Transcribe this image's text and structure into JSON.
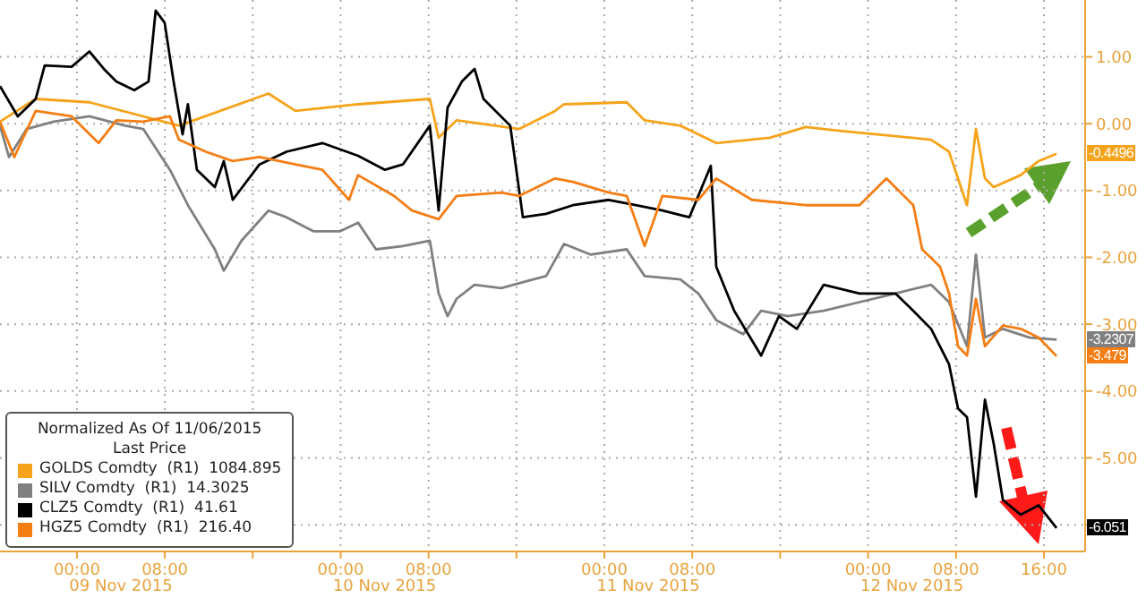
{
  "chart_data": {
    "type": "line",
    "legend_title": "Normalized As Of 11/06/2015\nLast Price",
    "legend": "bottom left",
    "grid": true,
    "line_style": "solid",
    "xlim": [
      "2015-11-08T17:00",
      "2015-11-12T19:45"
    ],
    "ylim": [
      -6.4,
      1.85
    ],
    "yticks": [
      {
        "value": 1,
        "label": "1.00"
      },
      {
        "value": 0,
        "label": "0.00"
      },
      {
        "value": -1,
        "label": "-1.00"
      },
      {
        "value": -2,
        "label": "-2.00"
      },
      {
        "value": -3,
        "label": "-3.00"
      },
      {
        "value": -4,
        "label": "-4.00"
      },
      {
        "value": -5,
        "label": "-5.00"
      },
      {
        "value": -6,
        "label": null
      }
    ],
    "xticks": [
      {
        "value": "2015-11-09T00:00",
        "label": "00:00"
      },
      {
        "value": "2015-11-09T08:00",
        "label": "08:00"
      },
      {
        "value": "2015-11-09T16:00",
        "label": null
      },
      {
        "value": "2015-11-10T00:00",
        "label": "00:00"
      },
      {
        "value": "2015-11-10T08:00",
        "label": "08:00"
      },
      {
        "value": "2015-11-10T16:00",
        "label": null
      },
      {
        "value": "2015-11-11T00:00",
        "label": "00:00"
      },
      {
        "value": "2015-11-11T08:00",
        "label": "08:00"
      },
      {
        "value": "2015-11-11T16:00",
        "label": null
      },
      {
        "value": "2015-11-12T00:00",
        "label": "00:00"
      },
      {
        "value": "2015-11-12T08:00",
        "label": "08:00"
      },
      {
        "value": "2015-11-12T16:00",
        "label": "16:00"
      }
    ],
    "x2lim": [
      "2015-11-08T17:00",
      "2015-11-12T19:45"
    ],
    "x2ticks": [
      {
        "value": "2015-11-09T04:00",
        "label": "09 Nov 2015"
      },
      {
        "value": "2015-11-10T04:00",
        "label": "10 Nov 2015"
      },
      {
        "value": "2015-11-11T04:00",
        "label": "11 Nov 2015"
      },
      {
        "value": "2015-11-12T04:00",
        "label": "12 Nov 2015"
      }
    ],
    "series": [
      {
        "name": "GOLDS Comdty  (R1)  1084.895",
        "color": "#f5a31a",
        "x": [
          "2015-11-08T17:00",
          "2015-11-08T20:15",
          "2015-11-09T01:08",
          "2015-11-09T09:17",
          "2015-11-09T17:26",
          "2015-11-09T19:53",
          "2015-11-10T01:35",
          "2015-11-10T08:07",
          "2015-11-10T08:55",
          "2015-11-10T10:33",
          "2015-11-10T16:15",
          "2015-11-10T19:31",
          "2015-11-10T20:20",
          "2015-11-11T02:02",
          "2015-11-11T03:40",
          "2015-11-11T06:55",
          "2015-11-11T10:11",
          "2015-11-11T15:04",
          "2015-11-11T18:20",
          "2015-11-11T21:35",
          "2015-11-12T00:51",
          "2015-11-12T05:44",
          "2015-11-12T07:22",
          "2015-11-12T09:00",
          "2015-11-12T09:49",
          "2015-11-12T10:38",
          "2015-11-12T11:26",
          "2015-11-12T13:53",
          "2015-11-12T15:31",
          "2015-11-12T17:09"
        ],
        "values": [
          0.03,
          0.37,
          0.32,
          -0.03,
          0.45,
          0.19,
          0.29,
          0.37,
          -0.21,
          0.05,
          -0.08,
          0.19,
          0.29,
          0.32,
          0.05,
          -0.03,
          -0.29,
          -0.21,
          -0.05,
          -0.11,
          -0.16,
          -0.24,
          -0.42,
          -1.22,
          -0.08,
          -0.82,
          -0.95,
          -0.77,
          -0.56,
          -0.4496
        ]
      },
      {
        "name": "SILV Comdty  (R1)  14.3025",
        "color": "#808080",
        "x": [
          "2015-11-08T17:00",
          "2015-11-08T17:49",
          "2015-11-08T19:26",
          "2015-11-08T21:53",
          "2015-11-09T01:08",
          "2015-11-09T04:24",
          "2015-11-09T06:02",
          "2015-11-09T08:28",
          "2015-11-09T10:06",
          "2015-11-09T12:33",
          "2015-11-09T13:22",
          "2015-11-09T14:59",
          "2015-11-09T17:26",
          "2015-11-09T19:04",
          "2015-11-09T21:31",
          "2015-11-09T23:58",
          "2015-11-10T01:35",
          "2015-11-10T03:13",
          "2015-11-10T05:40",
          "2015-11-10T08:07",
          "2015-11-10T08:55",
          "2015-11-10T09:44",
          "2015-11-10T10:33",
          "2015-11-10T12:11",
          "2015-11-10T14:37",
          "2015-11-10T17:04",
          "2015-11-10T18:42",
          "2015-11-10T20:20",
          "2015-11-10T22:46",
          "2015-11-11T02:02",
          "2015-11-11T03:40",
          "2015-11-11T06:55",
          "2015-11-11T08:33",
          "2015-11-11T10:11",
          "2015-11-11T12:38",
          "2015-11-11T14:16",
          "2015-11-11T16:42",
          "2015-11-11T19:58",
          "2015-11-11T23:13",
          "2015-11-12T02:29",
          "2015-11-12T05:44",
          "2015-11-12T07:22",
          "2015-11-12T09:00",
          "2015-11-12T09:49",
          "2015-11-12T10:38",
          "2015-11-12T12:16",
          "2015-11-12T14:42",
          "2015-11-12T17:09"
        ],
        "values": [
          -0.03,
          -0.5,
          -0.08,
          0.03,
          0.11,
          -0.03,
          -0.08,
          -0.69,
          -1.22,
          -1.88,
          -2.2,
          -1.75,
          -1.3,
          -1.4,
          -1.61,
          -1.61,
          -1.48,
          -1.88,
          -1.83,
          -1.75,
          -2.54,
          -2.88,
          -2.62,
          -2.41,
          -2.46,
          -2.35,
          -2.28,
          -1.8,
          -1.96,
          -1.88,
          -2.28,
          -2.33,
          -2.54,
          -2.94,
          -3.15,
          -2.8,
          -2.88,
          -2.8,
          -2.67,
          -2.54,
          -2.41,
          -2.67,
          -3.33,
          -1.96,
          -3.2,
          -3.07,
          -3.2,
          -3.2307
        ]
      },
      {
        "name": "CLZ5 Comdty  (R1)  41.61",
        "color": "#000000",
        "x": [
          "2015-11-08T17:00",
          "2015-11-08T18:37",
          "2015-11-08T20:15",
          "2015-11-08T21:04",
          "2015-11-08T23:31",
          "2015-11-09T01:08",
          "2015-11-09T02:27",
          "2015-11-09T03:35",
          "2015-11-09T05:13",
          "2015-11-09T06:31",
          "2015-11-09T07:10",
          "2015-11-09T07:59",
          "2015-11-09T08:48",
          "2015-11-09T09:37",
          "2015-11-09T10:06",
          "2015-11-09T10:55",
          "2015-11-09T12:33",
          "2015-11-09T13:22",
          "2015-11-09T14:11",
          "2015-11-09T16:37",
          "2015-11-09T19:04",
          "2015-11-09T22:20",
          "2015-11-10T01:35",
          "2015-11-10T04:02",
          "2015-11-10T05:40",
          "2015-11-10T08:07",
          "2015-11-10T08:55",
          "2015-11-10T09:44",
          "2015-11-10T11:02",
          "2015-11-10T12:11",
          "2015-11-10T13:00",
          "2015-11-10T15:26",
          "2015-11-10T16:35",
          "2015-11-10T18:42",
          "2015-11-10T21:08",
          "2015-11-11T00:24",
          "2015-11-11T02:51",
          "2015-11-11T05:17",
          "2015-11-11T07:44",
          "2015-11-11T09:41",
          "2015-11-11T10:11",
          "2015-11-11T11:49",
          "2015-11-11T14:16",
          "2015-11-11T15:53",
          "2015-11-11T17:31",
          "2015-11-11T19:58",
          "2015-11-11T23:13",
          "2015-11-12T02:29",
          "2015-11-12T04:07",
          "2015-11-12T05:44",
          "2015-11-12T07:22",
          "2015-11-12T08:11",
          "2015-11-12T09:00",
          "2015-11-12T09:49",
          "2015-11-12T10:38",
          "2015-11-12T11:26",
          "2015-11-12T12:16",
          "2015-11-12T13:53",
          "2015-11-12T15:31",
          "2015-11-12T17:09"
        ],
        "values": [
          0.56,
          0.11,
          0.37,
          0.87,
          0.85,
          1.08,
          0.82,
          0.63,
          0.5,
          0.63,
          1.69,
          1.51,
          0.63,
          -0.16,
          0.29,
          -0.69,
          -0.95,
          -0.56,
          -1.14,
          -0.61,
          -0.42,
          -0.29,
          -0.48,
          -0.69,
          -0.61,
          -0.03,
          -1.3,
          0.24,
          0.63,
          0.82,
          0.37,
          -0.03,
          -1.4,
          -1.35,
          -1.22,
          -1.14,
          -1.22,
          -1.3,
          -1.4,
          -0.63,
          -2.14,
          -2.8,
          -3.47,
          -2.88,
          -3.07,
          -2.41,
          -2.54,
          -2.54,
          -2.8,
          -3.07,
          -3.6,
          -4.26,
          -4.39,
          -5.58,
          -4.13,
          -4.79,
          -5.63,
          -5.85,
          -5.71,
          -6.051
        ]
      },
      {
        "name": "HGZ5 Comdty  (R1)  216.40",
        "color": "#f57e14",
        "x": [
          "2015-11-08T17:00",
          "2015-11-08T18:18",
          "2015-11-08T20:15",
          "2015-11-08T23:31",
          "2015-11-09T01:58",
          "2015-11-09T03:35",
          "2015-11-09T06:02",
          "2015-11-09T08:28",
          "2015-11-09T09:17",
          "2015-11-09T11:44",
          "2015-11-09T14:11",
          "2015-11-09T16:37",
          "2015-11-09T19:53",
          "2015-11-09T22:20",
          "2015-11-10T00:46",
          "2015-11-10T01:35",
          "2015-11-10T04:51",
          "2015-11-10T06:29",
          "2015-11-10T08:55",
          "2015-11-10T10:33",
          "2015-11-10T14:37",
          "2015-11-10T16:15",
          "2015-11-10T19:31",
          "2015-11-10T21:08",
          "2015-11-11T00:24",
          "2015-11-11T02:02",
          "2015-11-11T03:40",
          "2015-11-11T05:17",
          "2015-11-11T08:33",
          "2015-11-11T10:11",
          "2015-11-11T13:26",
          "2015-11-11T18:20",
          "2015-11-11T23:13",
          "2015-11-12T01:40",
          "2015-11-12T04:07",
          "2015-11-12T04:55",
          "2015-11-12T06:33",
          "2015-11-12T07:22",
          "2015-11-12T08:11",
          "2015-11-12T09:00",
          "2015-11-12T09:49",
          "2015-11-12T10:38",
          "2015-11-12T12:16",
          "2015-11-12T13:53",
          "2015-11-12T15:31",
          "2015-11-12T17:09"
        ],
        "values": [
          0.03,
          -0.5,
          0.19,
          0.11,
          -0.29,
          0.05,
          0.03,
          0.11,
          -0.24,
          -0.42,
          -0.56,
          -0.5,
          -0.61,
          -0.69,
          -1.14,
          -0.77,
          -1.08,
          -1.3,
          -1.43,
          -1.08,
          -1.03,
          -1.08,
          -0.82,
          -0.87,
          -1.03,
          -1.08,
          -1.83,
          -1.08,
          -1.14,
          -0.82,
          -1.14,
          -1.22,
          -1.22,
          -0.82,
          -1.22,
          -1.88,
          -2.14,
          -2.54,
          -3.33,
          -3.47,
          -2.62,
          -3.33,
          -3.02,
          -3.07,
          -3.2,
          -3.479
        ]
      }
    ],
    "annotations": [
      {
        "text": "-0.4496",
        "x": "2015-11-12T17:09",
        "y": -0.4496
      },
      {
        "text": "-3.2307",
        "x": "2015-11-12T17:09",
        "y": -3.2307
      },
      {
        "text": "-6.051",
        "x": "2015-11-12T17:09",
        "y": -6.051
      },
      {
        "text": "-3.479",
        "x": "2015-11-12T17:09",
        "y": -3.479
      }
    ]
  }
}
